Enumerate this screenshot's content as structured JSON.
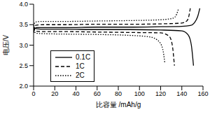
{
  "chart_data": {
    "type": "line",
    "x_label": "比容量 /mAh/g",
    "y_label": "电压/V",
    "xlim": [
      0,
      160
    ],
    "xticks": [
      0,
      20,
      40,
      60,
      80,
      100,
      120,
      140,
      160
    ],
    "ylim": [
      2.0,
      4.0
    ],
    "yticks": [
      {
        "value": 2.0,
        "label": "2.0"
      },
      2.5,
      {
        "value": 3.0,
        "label": "3.0"
      },
      3.5,
      {
        "value": 4.0,
        "label": "4.0"
      }
    ],
    "grid": false,
    "legend": "lower left",
    "series": [
      {
        "name": "0.1C",
        "color": "#000000",
        "line_style": "solid",
        "x": [
          0,
          1,
          3,
          10,
          30,
          60,
          90,
          120,
          140,
          148,
          152,
          155,
          157,
          null,
          0,
          1,
          3,
          10,
          30,
          60,
          90,
          120,
          140,
          146,
          149,
          151
        ],
        "values": [
          3.3,
          3.4,
          3.43,
          3.43,
          3.43,
          3.44,
          3.44,
          3.45,
          3.46,
          3.48,
          3.55,
          3.7,
          3.9,
          null,
          3.45,
          3.42,
          3.4,
          3.39,
          3.39,
          3.38,
          3.38,
          3.37,
          3.35,
          3.25,
          3.0,
          2.5
        ]
      },
      {
        "name": "1C",
        "color": "#000000",
        "line_style": "dashed",
        "x": [
          0,
          1,
          3,
          10,
          30,
          60,
          90,
          120,
          140,
          145,
          147,
          148,
          null,
          0,
          1,
          3,
          10,
          30,
          60,
          90,
          120,
          128,
          131,
          133
        ],
        "values": [
          3.35,
          3.47,
          3.49,
          3.5,
          3.5,
          3.51,
          3.51,
          3.52,
          3.54,
          3.6,
          3.75,
          3.9,
          null,
          3.45,
          3.37,
          3.34,
          3.33,
          3.33,
          3.32,
          3.31,
          3.3,
          3.22,
          3.0,
          2.5
        ]
      },
      {
        "name": "2C",
        "color": "#000000",
        "line_style": "dotted",
        "x": [
          0,
          1,
          3,
          10,
          30,
          60,
          90,
          120,
          132,
          135,
          137,
          null,
          0,
          1,
          3,
          10,
          30,
          60,
          90,
          110,
          118,
          122,
          124
        ],
        "values": [
          3.4,
          3.55,
          3.57,
          3.58,
          3.58,
          3.59,
          3.6,
          3.62,
          3.66,
          3.75,
          3.9,
          null,
          3.5,
          3.32,
          3.29,
          3.28,
          3.27,
          3.26,
          3.24,
          3.2,
          3.1,
          2.9,
          2.55
        ]
      }
    ]
  }
}
